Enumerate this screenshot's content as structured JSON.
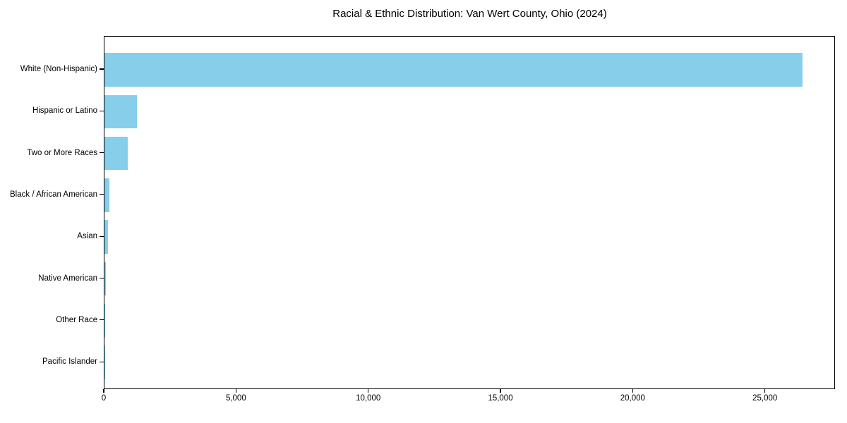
{
  "chart_data": {
    "type": "bar",
    "orientation": "horizontal",
    "title": "Racial & Ethnic Distribution: Van Wert County, Ohio (2024)",
    "categories": [
      "White (Non-Hispanic)",
      "Hispanic or Latino",
      "Two or More Races",
      "Black / African American",
      "Asian",
      "Native American",
      "Other Race",
      "Pacific Islander"
    ],
    "values": [
      26400,
      1230,
      880,
      190,
      130,
      50,
      25,
      10
    ],
    "xlabel": "",
    "ylabel": "",
    "xlim": [
      0,
      27650
    ],
    "xticks": [
      0,
      5000,
      10000,
      15000,
      20000,
      25000
    ],
    "xtick_labels": [
      "0",
      "5,000",
      "10,000",
      "15,000",
      "20,000",
      "25,000"
    ],
    "bar_color": "#87ceeb",
    "spine_color": "#000000",
    "grid": false,
    "legend": "none",
    "layout_hint": "largest-to-smallest top-to-bottom, full box spines, no gridlines"
  }
}
